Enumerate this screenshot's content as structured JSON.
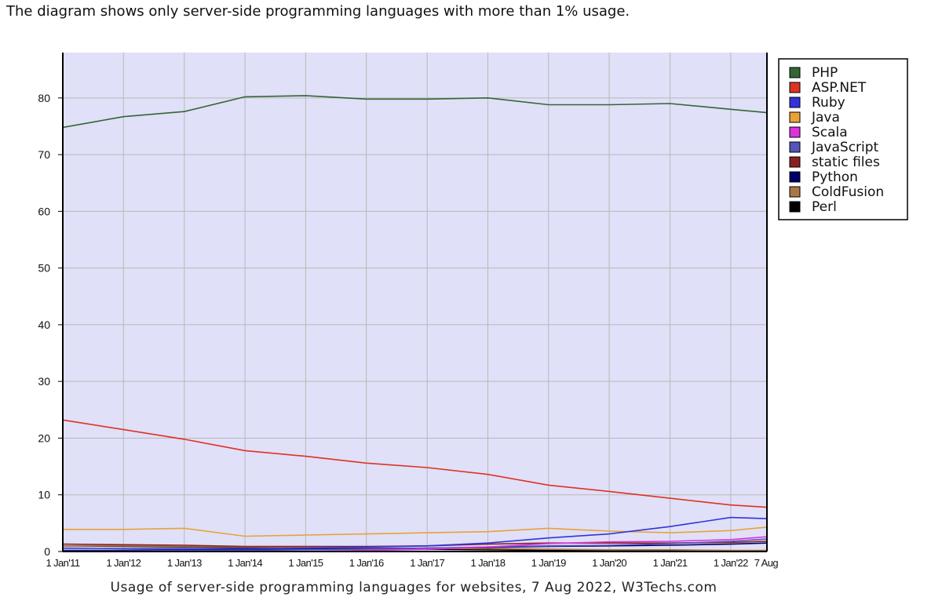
{
  "note": "The diagram shows only server-side programming languages with more than 1% usage.",
  "chart_data": {
    "type": "line",
    "caption": "Usage of server-side programming languages for websites, 7 Aug 2022, W3Techs.com",
    "x": [
      "1 Jan'11",
      "1 Jan'12",
      "1 Jan'13",
      "1 Jan'14",
      "1 Jan'15",
      "1 Jan'16",
      "1 Jan'17",
      "1 Jan'18",
      "1 Jan'19",
      "1 Jan'20",
      "1 Jan'21",
      "1 Jan'22",
      "7 Aug"
    ],
    "x_dates": [
      "2011-01-01",
      "2012-01-01",
      "2013-01-01",
      "2014-01-01",
      "2015-01-01",
      "2016-01-01",
      "2017-01-01",
      "2018-01-01",
      "2019-01-01",
      "2020-01-01",
      "2021-01-01",
      "2022-01-01",
      "2022-08-07"
    ],
    "ylim": [
      0,
      88
    ],
    "yticks": [
      0,
      10,
      20,
      30,
      40,
      50,
      60,
      70,
      80
    ],
    "grid": true,
    "legend_position": "right",
    "background": "#e0e0f8",
    "series": [
      {
        "name": "PHP",
        "color": "#336633",
        "values": [
          74.8,
          76.7,
          77.6,
          80.2,
          80.4,
          79.8,
          79.8,
          80.0,
          78.8,
          78.8,
          79.0,
          78.0,
          77.4
        ]
      },
      {
        "name": "ASP.NET",
        "color": "#dd3322",
        "values": [
          23.2,
          21.5,
          19.8,
          17.8,
          16.8,
          15.6,
          14.8,
          13.6,
          11.7,
          10.6,
          9.4,
          8.2,
          7.8
        ]
      },
      {
        "name": "Ruby",
        "color": "#3333dd",
        "values": [
          0.6,
          0.5,
          0.5,
          0.5,
          0.6,
          0.8,
          1.0,
          1.5,
          2.4,
          3.1,
          4.4,
          6.0,
          5.8
        ]
      },
      {
        "name": "Java",
        "color": "#e8a23a",
        "values": [
          3.9,
          3.9,
          4.1,
          2.7,
          2.9,
          3.1,
          3.3,
          3.5,
          4.1,
          3.6,
          3.3,
          3.7,
          4.3
        ]
      },
      {
        "name": "Scala",
        "color": "#dd33dd",
        "values": [
          0,
          0,
          0,
          0,
          0,
          0.2,
          0.4,
          0.8,
          1.4,
          1.7,
          1.8,
          2.1,
          2.6
        ]
      },
      {
        "name": "JavaScript",
        "color": "#5555bb",
        "values": [
          0.1,
          0.1,
          0.2,
          0.2,
          0.3,
          0.4,
          0.6,
          0.8,
          1.0,
          1.1,
          1.4,
          1.8,
          2.2
        ]
      },
      {
        "name": "static files",
        "color": "#882222",
        "values": [
          1.3,
          1.2,
          1.1,
          0.9,
          0.9,
          0.9,
          1.0,
          1.3,
          1.5,
          1.5,
          1.5,
          1.6,
          1.8
        ]
      },
      {
        "name": "Python",
        "color": "#000066",
        "values": [
          0.2,
          0.2,
          0.3,
          0.3,
          0.4,
          0.5,
          0.6,
          0.7,
          0.9,
          1.0,
          1.1,
          1.3,
          1.5
        ]
      },
      {
        "name": "ColdFusion",
        "color": "#aa7744",
        "values": [
          1.0,
          1.0,
          0.9,
          0.8,
          0.7,
          0.6,
          0.6,
          0.5,
          0.4,
          0.3,
          0.3,
          0.2,
          0.2
        ]
      },
      {
        "name": "Perl",
        "color": "#000000",
        "values": [
          1.0,
          0.9,
          0.8,
          0.7,
          0.6,
          0.5,
          0.4,
          0.3,
          0.2,
          0.2,
          0.1,
          0.1,
          0.1
        ]
      }
    ]
  }
}
